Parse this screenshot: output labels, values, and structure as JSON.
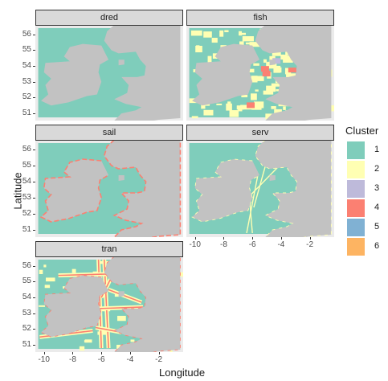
{
  "axis": {
    "ylabel": "Latitude",
    "xlabel": "Longitude",
    "lat_ticks": [
      "56",
      "55",
      "54",
      "53",
      "52",
      "51"
    ],
    "lon_ticks": [
      "-10",
      "-8",
      "-6",
      "-4",
      "-2"
    ]
  },
  "facets": [
    {
      "label": "dred"
    },
    {
      "label": "fish"
    },
    {
      "label": "sail"
    },
    {
      "label": "serv"
    },
    {
      "label": "tran"
    }
  ],
  "legend": {
    "title": "Cluster",
    "items": [
      {
        "label": "1",
        "color": "#7fcdbb"
      },
      {
        "label": "2",
        "color": "#ffffb3"
      },
      {
        "label": "3",
        "color": "#bebada"
      },
      {
        "label": "4",
        "color": "#fb8072"
      },
      {
        "label": "5",
        "color": "#80b1d3"
      },
      {
        "label": "6",
        "color": "#fdb462"
      }
    ]
  },
  "colors": {
    "land": "#c2c2c2",
    "background": "#ebebeb"
  }
}
